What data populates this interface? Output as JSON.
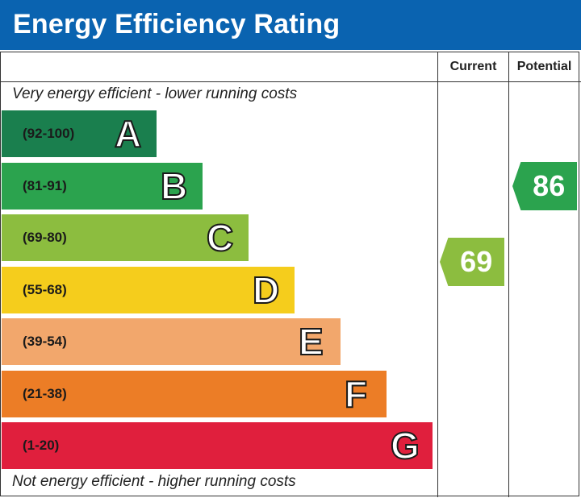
{
  "header": {
    "title": "Energy Efficiency Rating"
  },
  "columns": {
    "current": "Current",
    "potential": "Potential"
  },
  "captions": {
    "top": "Very energy efficient - lower running costs",
    "bottom": "Not energy efficient - higher running costs"
  },
  "chart_data": {
    "type": "bar",
    "title": "Energy Efficiency Rating",
    "bands": [
      {
        "letter": "A",
        "range": "(92-100)",
        "min": 92,
        "max": 100,
        "color": "#1a7f4e"
      },
      {
        "letter": "B",
        "range": "(81-91)",
        "min": 81,
        "max": 91,
        "color": "#2ba34e"
      },
      {
        "letter": "C",
        "range": "(69-80)",
        "min": 69,
        "max": 80,
        "color": "#8cbd3f"
      },
      {
        "letter": "D",
        "range": "(55-68)",
        "min": 55,
        "max": 68,
        "color": "#f5cd1c"
      },
      {
        "letter": "E",
        "range": "(39-54)",
        "min": 39,
        "max": 54,
        "color": "#f2a76c"
      },
      {
        "letter": "F",
        "range": "(21-38)",
        "min": 21,
        "max": 38,
        "color": "#ec7d26"
      },
      {
        "letter": "G",
        "range": "(1-20)",
        "min": 1,
        "max": 20,
        "color": "#e01f3d"
      }
    ],
    "ratings": {
      "current": {
        "value": 69,
        "band": "C",
        "color": "#8cbd3f"
      },
      "potential": {
        "value": 86,
        "band": "B",
        "color": "#2ba34e"
      }
    }
  }
}
